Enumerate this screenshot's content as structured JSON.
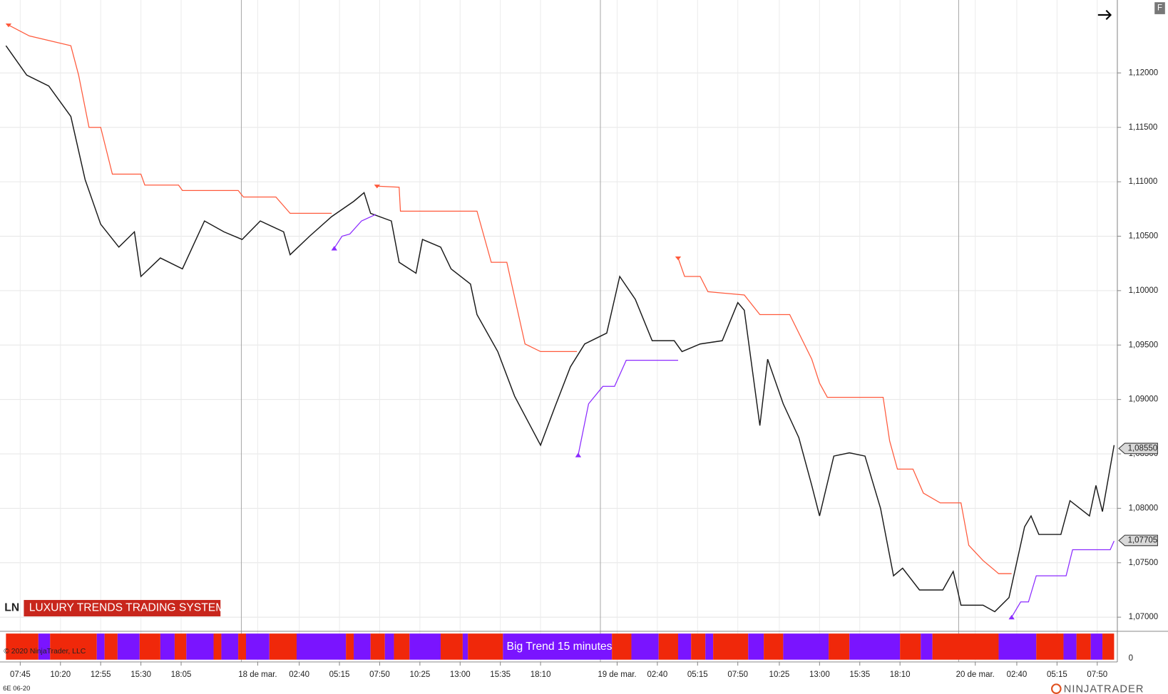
{
  "header": {
    "ln": "LN",
    "system": "LUXURY TRENDS TRADING SYSTEM",
    "copyright": "© 2020 NinjaTrader, LLC",
    "instrument": "6E 06-20",
    "brand": "NINJATRADER",
    "button": "F"
  },
  "chart_data": {
    "type": "line",
    "xlim": [
      0,
      855
    ],
    "ylim": [
      1.0687,
      1.1267
    ],
    "grid": true,
    "xticks": [
      {
        "value": 11,
        "label": "07:45"
      },
      {
        "value": 42,
        "label": "10:20"
      },
      {
        "value": 73,
        "label": "12:55"
      },
      {
        "value": 104,
        "label": "15:30"
      },
      {
        "value": 135,
        "label": "18:05"
      },
      {
        "value": 194,
        "label": "18 de mar."
      },
      {
        "value": 226,
        "label": "02:40"
      },
      {
        "value": 257,
        "label": "05:15"
      },
      {
        "value": 288,
        "label": "07:50"
      },
      {
        "value": 319,
        "label": "10:25"
      },
      {
        "value": 350,
        "label": "13:00"
      },
      {
        "value": 381,
        "label": "15:35"
      },
      {
        "value": 412,
        "label": "18:10"
      },
      {
        "value": 471,
        "label": "19 de mar."
      },
      {
        "value": 502,
        "label": "02:40"
      },
      {
        "value": 533,
        "label": "05:15"
      },
      {
        "value": 564,
        "label": "07:50"
      },
      {
        "value": 596,
        "label": "10:25"
      },
      {
        "value": 627,
        "label": "13:00"
      },
      {
        "value": 658,
        "label": "15:35"
      },
      {
        "value": 689,
        "label": "18:10"
      },
      {
        "value": 747,
        "label": "20 de mar."
      },
      {
        "value": 779,
        "label": "02:40"
      },
      {
        "value": 810,
        "label": "05:15"
      },
      {
        "value": 841,
        "label": "07:50"
      }
    ],
    "yticks": [
      {
        "value": 1.07,
        "label": "1,07000"
      },
      {
        "value": 1.075,
        "label": "1,07500"
      },
      {
        "value": 1.08,
        "label": "1,08000"
      },
      {
        "value": 1.085,
        "label": "1,08500"
      },
      {
        "value": 1.09,
        "label": "1,09000"
      },
      {
        "value": 1.095,
        "label": "1,09500"
      },
      {
        "value": 1.1,
        "label": "1,10000"
      },
      {
        "value": 1.105,
        "label": "1,10500"
      },
      {
        "value": 1.11,
        "label": "1,11000"
      },
      {
        "value": 1.115,
        "label": "1,11500"
      },
      {
        "value": 1.12,
        "label": "1,12000"
      }
    ],
    "series": [
      {
        "color": "#1a1a1a",
        "x": [
          0,
          16,
          33,
          50,
          61,
          73,
          87,
          99,
          104,
          119,
          136,
          153,
          168,
          182,
          196,
          214,
          219,
          234,
          251,
          268,
          276,
          281,
          297,
          303,
          316,
          321,
          335,
          343,
          358,
          363,
          379,
          392,
          404,
          412,
          423,
          435,
          446,
          463,
          473,
          485,
          498,
          515,
          521,
          535,
          552,
          564,
          569,
          581,
          587,
          599,
          611,
          621,
          627,
          638,
          650,
          662,
          674,
          684,
          691,
          704,
          722,
          730,
          736,
          753,
          762,
          773,
          785,
          790,
          796,
          813,
          820,
          835,
          840,
          845,
          854
        ],
        "values": [
          1.1225,
          1.1198,
          1.1188,
          1.116,
          1.1102,
          1.1061,
          1.104,
          1.1054,
          1.1013,
          1.103,
          1.102,
          1.1064,
          1.1054,
          1.1047,
          1.1064,
          1.1054,
          1.1033,
          1.105,
          1.1068,
          1.1082,
          1.109,
          1.1071,
          1.1064,
          1.1026,
          1.1016,
          1.1047,
          1.104,
          1.102,
          1.1006,
          1.0978,
          1.0944,
          1.0903,
          1.0876,
          1.0858,
          1.0893,
          1.093,
          1.0951,
          1.0961,
          1.1013,
          1.0992,
          1.0954,
          1.0954,
          1.0944,
          1.0951,
          1.0954,
          1.0989,
          1.0982,
          1.0876,
          1.0937,
          1.0896,
          1.0865,
          1.0821,
          1.0793,
          1.0848,
          1.0851,
          1.0848,
          1.08,
          1.0738,
          1.0745,
          1.0725,
          1.0725,
          1.0742,
          1.0711,
          1.0711,
          1.0705,
          1.0718,
          1.0783,
          1.0793,
          1.0776,
          1.0776,
          1.0807,
          1.0793,
          1.0821,
          1.0797,
          1.0858
        ]
      },
      {
        "color": "#ff5a3c",
        "x": [
          2,
          18,
          50,
          56,
          64,
          73,
          82,
          104,
          107,
          133,
          136,
          179,
          183,
          208,
          219,
          251,
          null,
          286,
          303,
          304,
          363,
          374,
          386,
          400,
          412,
          440,
          null,
          518,
          523,
          535,
          541,
          569,
          581,
          604,
          621,
          627,
          633,
          676,
          681,
          687,
          699,
          707,
          720,
          736,
          742,
          753,
          765,
          775
        ],
        "values": [
          1.1244,
          1.1234,
          1.1225,
          1.1198,
          1.115,
          1.115,
          1.1107,
          1.1107,
          1.1097,
          1.1097,
          1.1092,
          1.1092,
          1.1086,
          1.1086,
          1.1071,
          1.1071,
          null,
          1.1096,
          1.1095,
          1.1073,
          1.1073,
          1.1026,
          1.1026,
          1.0951,
          1.0944,
          1.0944,
          null,
          1.103,
          1.1013,
          1.1013,
          1.0999,
          1.0996,
          1.0978,
          1.0978,
          1.0937,
          1.0915,
          1.0902,
          1.0902,
          1.0862,
          1.0836,
          1.0836,
          1.0814,
          1.0805,
          1.0805,
          1.0766,
          1.0752,
          1.074,
          1.074
        ]
      },
      {
        "color": "#8b2bff",
        "x": [
          253,
          259,
          265,
          274,
          285,
          null,
          441,
          449,
          460,
          469,
          478,
          518,
          null,
          775,
          782,
          788,
          794,
          817,
          822,
          851,
          854
        ],
        "values": [
          1.1039,
          1.105,
          1.1052,
          1.1064,
          1.107,
          null,
          1.0849,
          1.0896,
          1.0912,
          1.0912,
          1.0936,
          1.0936,
          null,
          1.07,
          1.0714,
          1.0714,
          1.0738,
          1.0738,
          1.0762,
          1.0762,
          1.077
        ]
      }
    ],
    "price_markers": [
      {
        "value": 1.0855,
        "label": "1,08550"
      },
      {
        "value": 1.07705,
        "label": "1,07705"
      }
    ],
    "band": {
      "title": "Big Trend 15 minutes",
      "yticks": [
        0
      ],
      "edges": [
        0,
        25,
        34,
        70,
        76,
        86,
        103,
        119,
        130,
        139,
        160,
        166,
        179,
        185,
        203,
        224,
        262,
        268,
        281,
        292,
        299,
        311,
        335,
        352,
        356,
        383,
        467,
        482,
        503,
        518,
        528,
        539,
        545,
        572,
        584,
        599,
        634,
        650,
        689,
        705,
        714,
        765,
        794,
        815,
        825,
        836,
        845,
        854
      ],
      "colors": [
        "#f0280a",
        "#7a14ff",
        "#f0280a",
        "#7a14ff",
        "#f0280a",
        "#7a14ff",
        "#f0280a",
        "#7a14ff",
        "#f0280a",
        "#7a14ff",
        "#f0280a",
        "#7a14ff",
        "#f0280a",
        "#7a14ff",
        "#f0280a",
        "#7a14ff",
        "#f0280a",
        "#7a14ff",
        "#f0280a",
        "#7a14ff",
        "#f0280a",
        "#7a14ff",
        "#f0280a",
        "#7a14ff",
        "#f0280a",
        "#7a14ff",
        "#f0280a",
        "#7a14ff",
        "#f0280a",
        "#7a14ff",
        "#f0280a",
        "#7a14ff",
        "#f0280a",
        "#7a14ff",
        "#f0280a",
        "#7a14ff",
        "#f0280a",
        "#7a14ff",
        "#f0280a",
        "#7a14ff",
        "#f0280a",
        "#7a14ff",
        "#f0280a",
        "#7a14ff",
        "#f0280a",
        "#7a14ff",
        "#f0280a"
      ]
    }
  }
}
